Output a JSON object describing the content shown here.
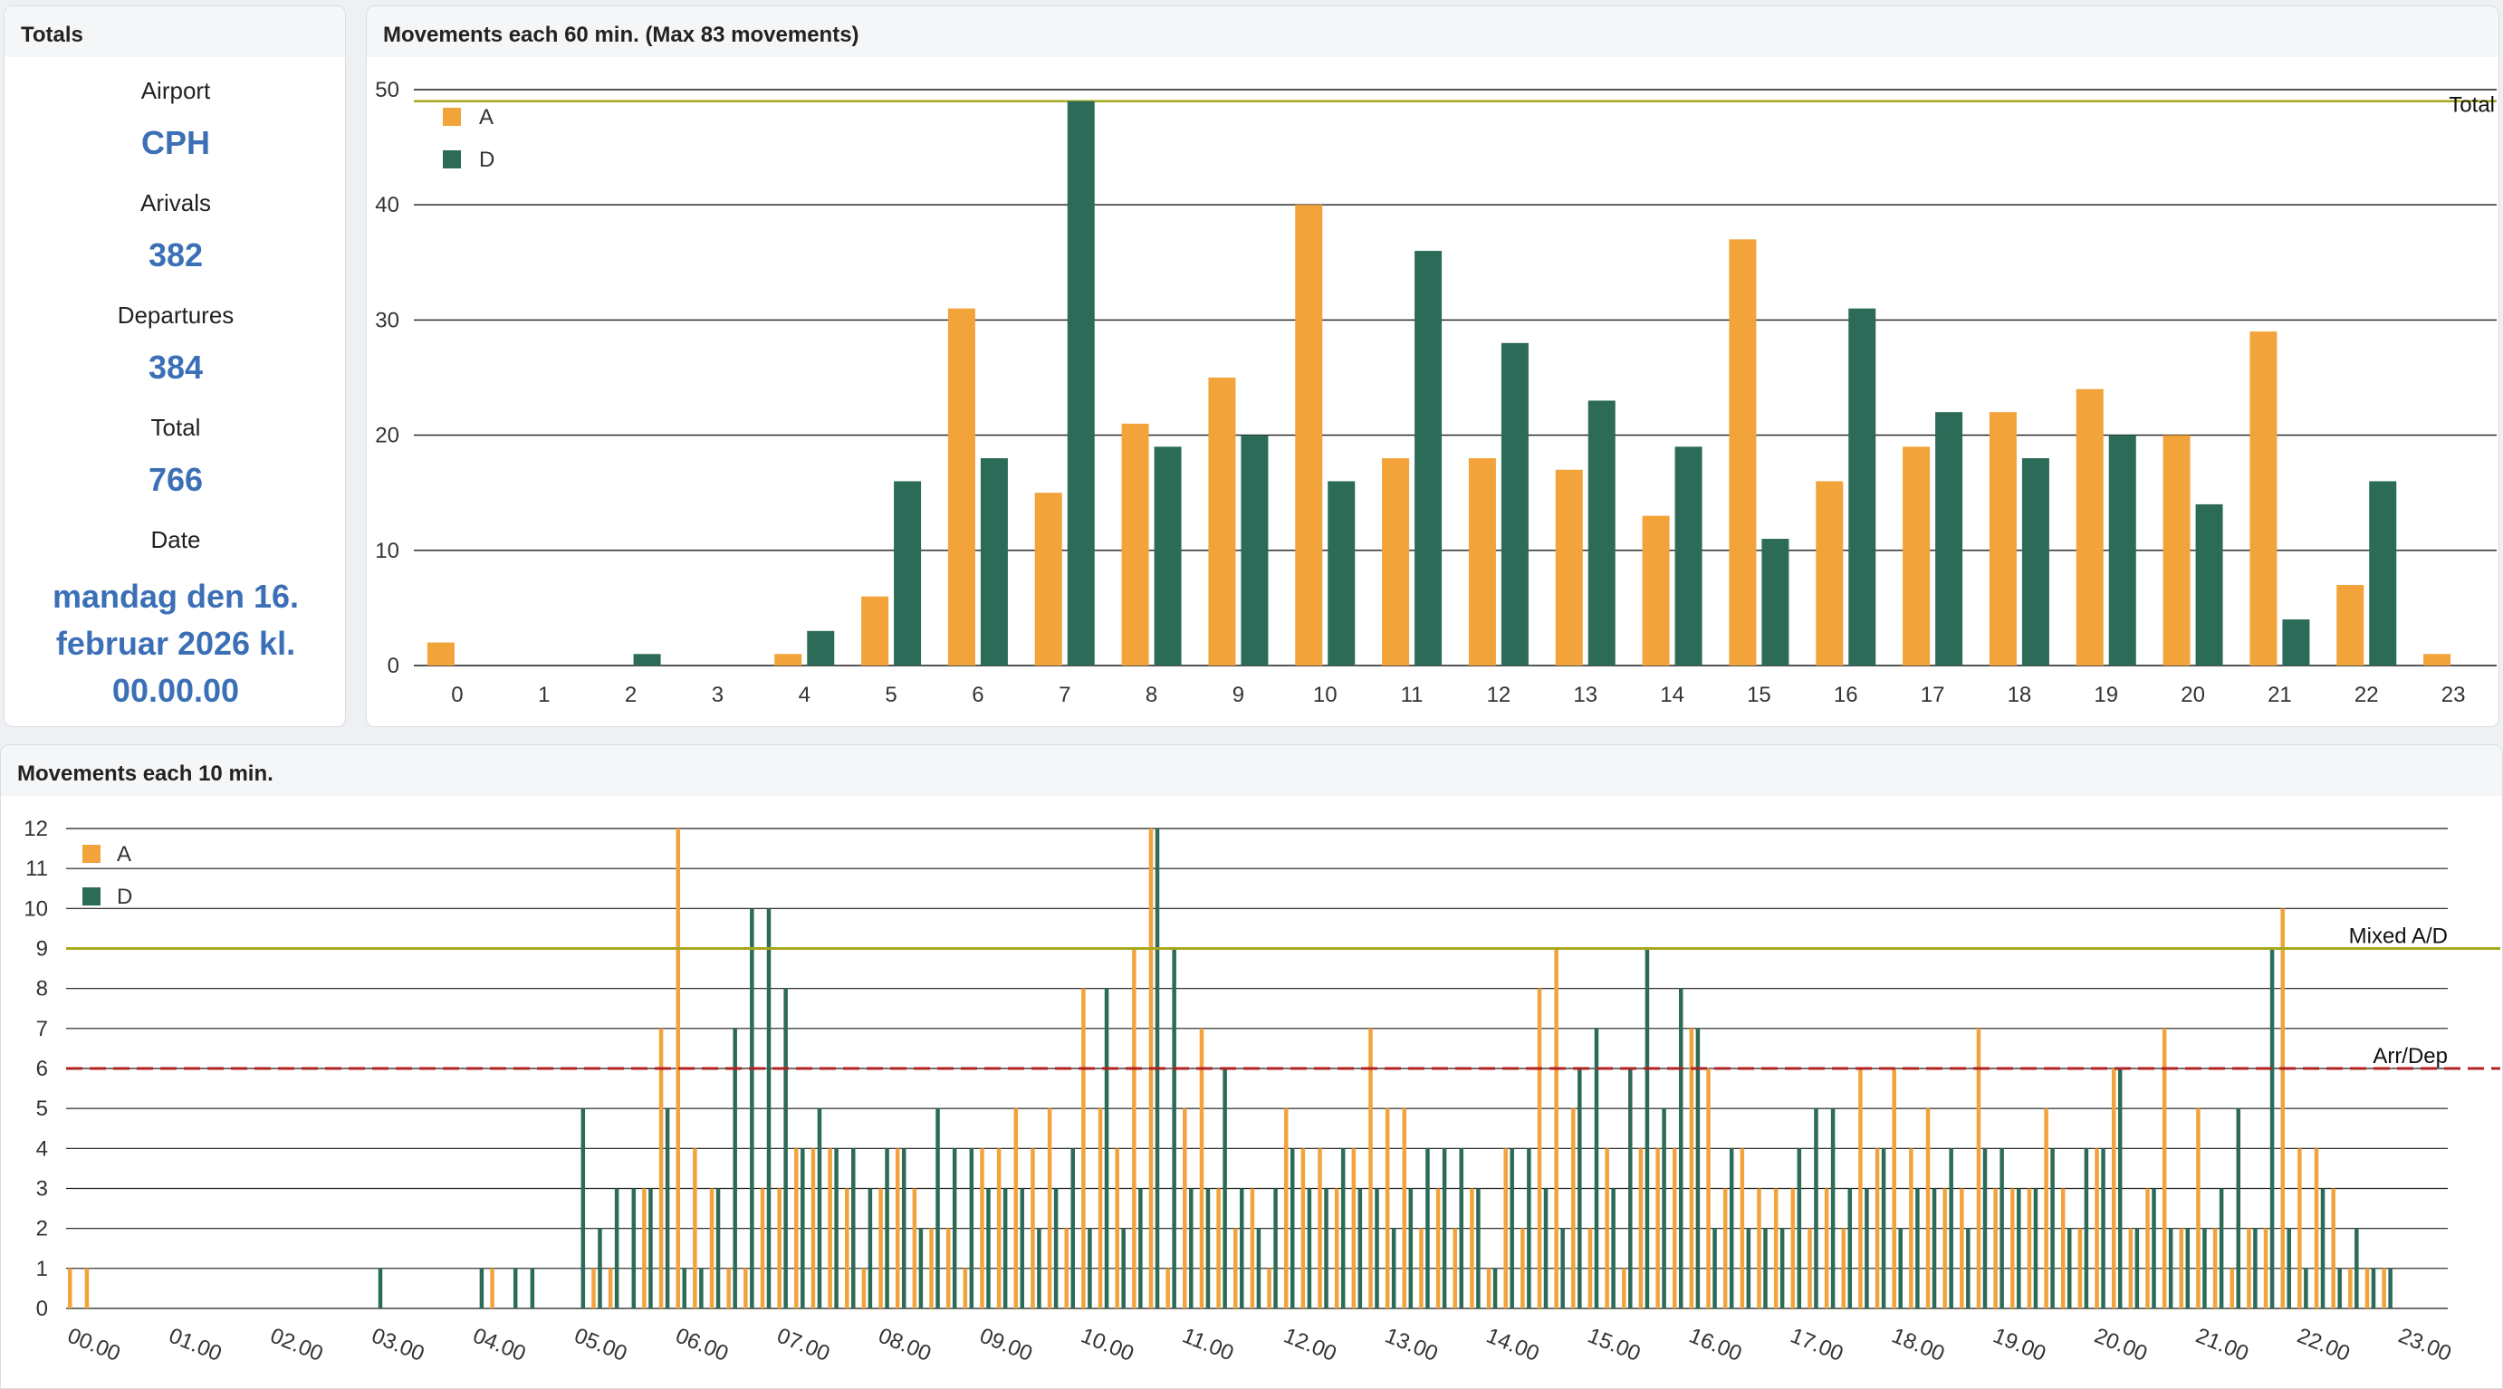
{
  "totals": {
    "title": "Totals",
    "airport_label": "Airport",
    "airport": "CPH",
    "arrivals_label": "Arivals",
    "arrivals": "382",
    "departures_label": "Departures",
    "departures": "384",
    "total_label": "Total",
    "total": "766",
    "date_label": "Date",
    "date": "mandag den 16. februar 2026 kl. 00.00.00"
  },
  "colors": {
    "arrivals": "#f2a33a",
    "departures": "#2c6b57",
    "grid": "#1a1a1a",
    "limit_line": "#a8a81e",
    "arrdep_line": "#b22222"
  },
  "chart_data": [
    {
      "type": "bar",
      "title": "Movements each 60 min. (Max 83 movements)",
      "categories": [
        "0",
        "1",
        "2",
        "3",
        "4",
        "5",
        "6",
        "7",
        "8",
        "9",
        "10",
        "11",
        "12",
        "13",
        "14",
        "15",
        "16",
        "17",
        "18",
        "19",
        "20",
        "21",
        "22",
        "23"
      ],
      "series": [
        {
          "name": "A",
          "values": [
            2,
            0,
            0,
            0,
            1,
            6,
            31,
            15,
            21,
            25,
            40,
            18,
            18,
            17,
            13,
            37,
            16,
            19,
            22,
            24,
            20,
            29,
            7,
            1
          ]
        },
        {
          "name": "D",
          "values": [
            0,
            0,
            1,
            0,
            3,
            16,
            18,
            49,
            19,
            20,
            16,
            36,
            28,
            23,
            19,
            11,
            31,
            22,
            18,
            20,
            14,
            4,
            16,
            0
          ]
        }
      ],
      "ylim": [
        0,
        50
      ],
      "yticks": [
        0,
        10,
        20,
        30,
        40,
        50
      ],
      "reference_lines": [
        {
          "label": "Total",
          "value": 49
        }
      ],
      "legend": "top-left",
      "grid": true
    },
    {
      "type": "bar",
      "title": "Movements each 10 min.",
      "xticks": [
        "00.00",
        "01.00",
        "02.00",
        "03.00",
        "04.00",
        "05.00",
        "06.00",
        "07.00",
        "08.00",
        "09.00",
        "10.00",
        "11.00",
        "12.00",
        "13.00",
        "14.00",
        "15.00",
        "16.00",
        "17.00",
        "18.00",
        "19.00",
        "20.00",
        "21.00",
        "22.00",
        "23.00"
      ],
      "series": [
        {
          "name": "A",
          "values": [
            1,
            1,
            0,
            0,
            0,
            0,
            0,
            0,
            0,
            0,
            0,
            0,
            0,
            0,
            0,
            0,
            0,
            0,
            0,
            0,
            0,
            0,
            0,
            0,
            0,
            1,
            0,
            0,
            0,
            0,
            0,
            1,
            1,
            0,
            3,
            7,
            12,
            4,
            3,
            1,
            1,
            3,
            3,
            4,
            4,
            4,
            3,
            1,
            3,
            4,
            3,
            2,
            2,
            1,
            4,
            4,
            5,
            4,
            5,
            2,
            8,
            5,
            4,
            9,
            12,
            1,
            5,
            7,
            3,
            2,
            3,
            1,
            5,
            4,
            4,
            3,
            4,
            7,
            5,
            5,
            2,
            3,
            2,
            3,
            1,
            4,
            2,
            8,
            9,
            5,
            2,
            4,
            1,
            4,
            4,
            4,
            7,
            6,
            3,
            4,
            3,
            3,
            3,
            2,
            3,
            2,
            6,
            4,
            6,
            4,
            5,
            3,
            3,
            7,
            3,
            3,
            3,
            5,
            3,
            2,
            4,
            6,
            2,
            3,
            7,
            2,
            5,
            2,
            1,
            2,
            2,
            10,
            4,
            4,
            3,
            1,
            1,
            1
          ]
        },
        {
          "name": "D",
          "values": [
            0,
            0,
            0,
            0,
            0,
            0,
            0,
            0,
            0,
            0,
            0,
            0,
            0,
            0,
            0,
            0,
            0,
            0,
            1,
            0,
            0,
            0,
            0,
            0,
            1,
            0,
            1,
            1,
            0,
            0,
            5,
            2,
            3,
            3,
            3,
            5,
            1,
            1,
            3,
            7,
            10,
            10,
            8,
            4,
            5,
            4,
            4,
            3,
            4,
            4,
            2,
            5,
            4,
            4,
            3,
            3,
            3,
            2,
            3,
            4,
            2,
            8,
            2,
            3,
            12,
            9,
            3,
            3,
            6,
            3,
            2,
            3,
            4,
            3,
            3,
            4,
            3,
            3,
            2,
            3,
            4,
            4,
            4,
            3,
            1,
            4,
            4,
            3,
            2,
            6,
            7,
            3,
            6,
            9,
            5,
            8,
            7,
            2,
            4,
            2,
            2,
            2,
            4,
            5,
            5,
            3,
            3,
            4,
            2,
            3,
            3,
            4,
            2,
            4,
            4,
            3,
            3,
            4,
            2,
            4,
            4,
            6,
            2,
            3,
            2,
            2,
            2,
            3,
            5,
            2,
            9,
            2,
            1,
            3,
            1,
            2,
            1,
            1
          ]
        }
      ],
      "ylim": [
        0,
        12
      ],
      "yticks": [
        0,
        1,
        2,
        3,
        4,
        5,
        6,
        7,
        8,
        9,
        10,
        11,
        12
      ],
      "reference_lines": [
        {
          "label": "Mixed A/D",
          "value": 9
        },
        {
          "label": "Arr/Dep",
          "value": 6
        }
      ],
      "legend": "top-left",
      "grid": true
    }
  ]
}
